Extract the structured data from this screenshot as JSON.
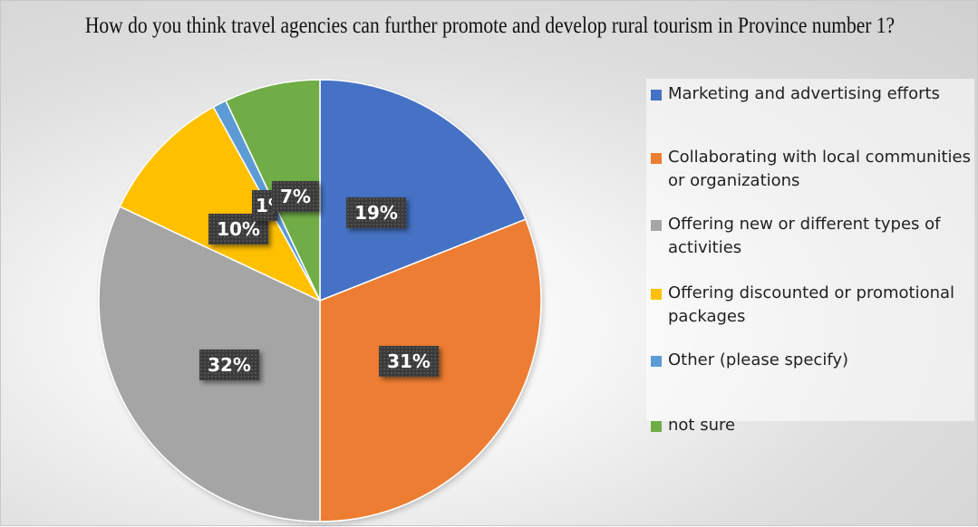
{
  "chart_data": {
    "type": "pie",
    "title": "How do you think travel agencies can further promote and develop rural tourism in Province number 1?",
    "categories": [
      "Marketing and advertising efforts",
      "Collaborating with local communities or organizations",
      "Offering new or different types of activities",
      "Offering discounted or promotional packages",
      "Other (please specify)",
      "not sure"
    ],
    "values": [
      19,
      31,
      32,
      10,
      1,
      7
    ],
    "data_labels": [
      "19%",
      "31%",
      "32%",
      "10%",
      "1%",
      "7%"
    ],
    "colors": [
      "#4472C4",
      "#ED7D31",
      "#A5A5A5",
      "#FFC000",
      "#5B9BD5",
      "#70AD47"
    ],
    "legend_placement": "right"
  }
}
